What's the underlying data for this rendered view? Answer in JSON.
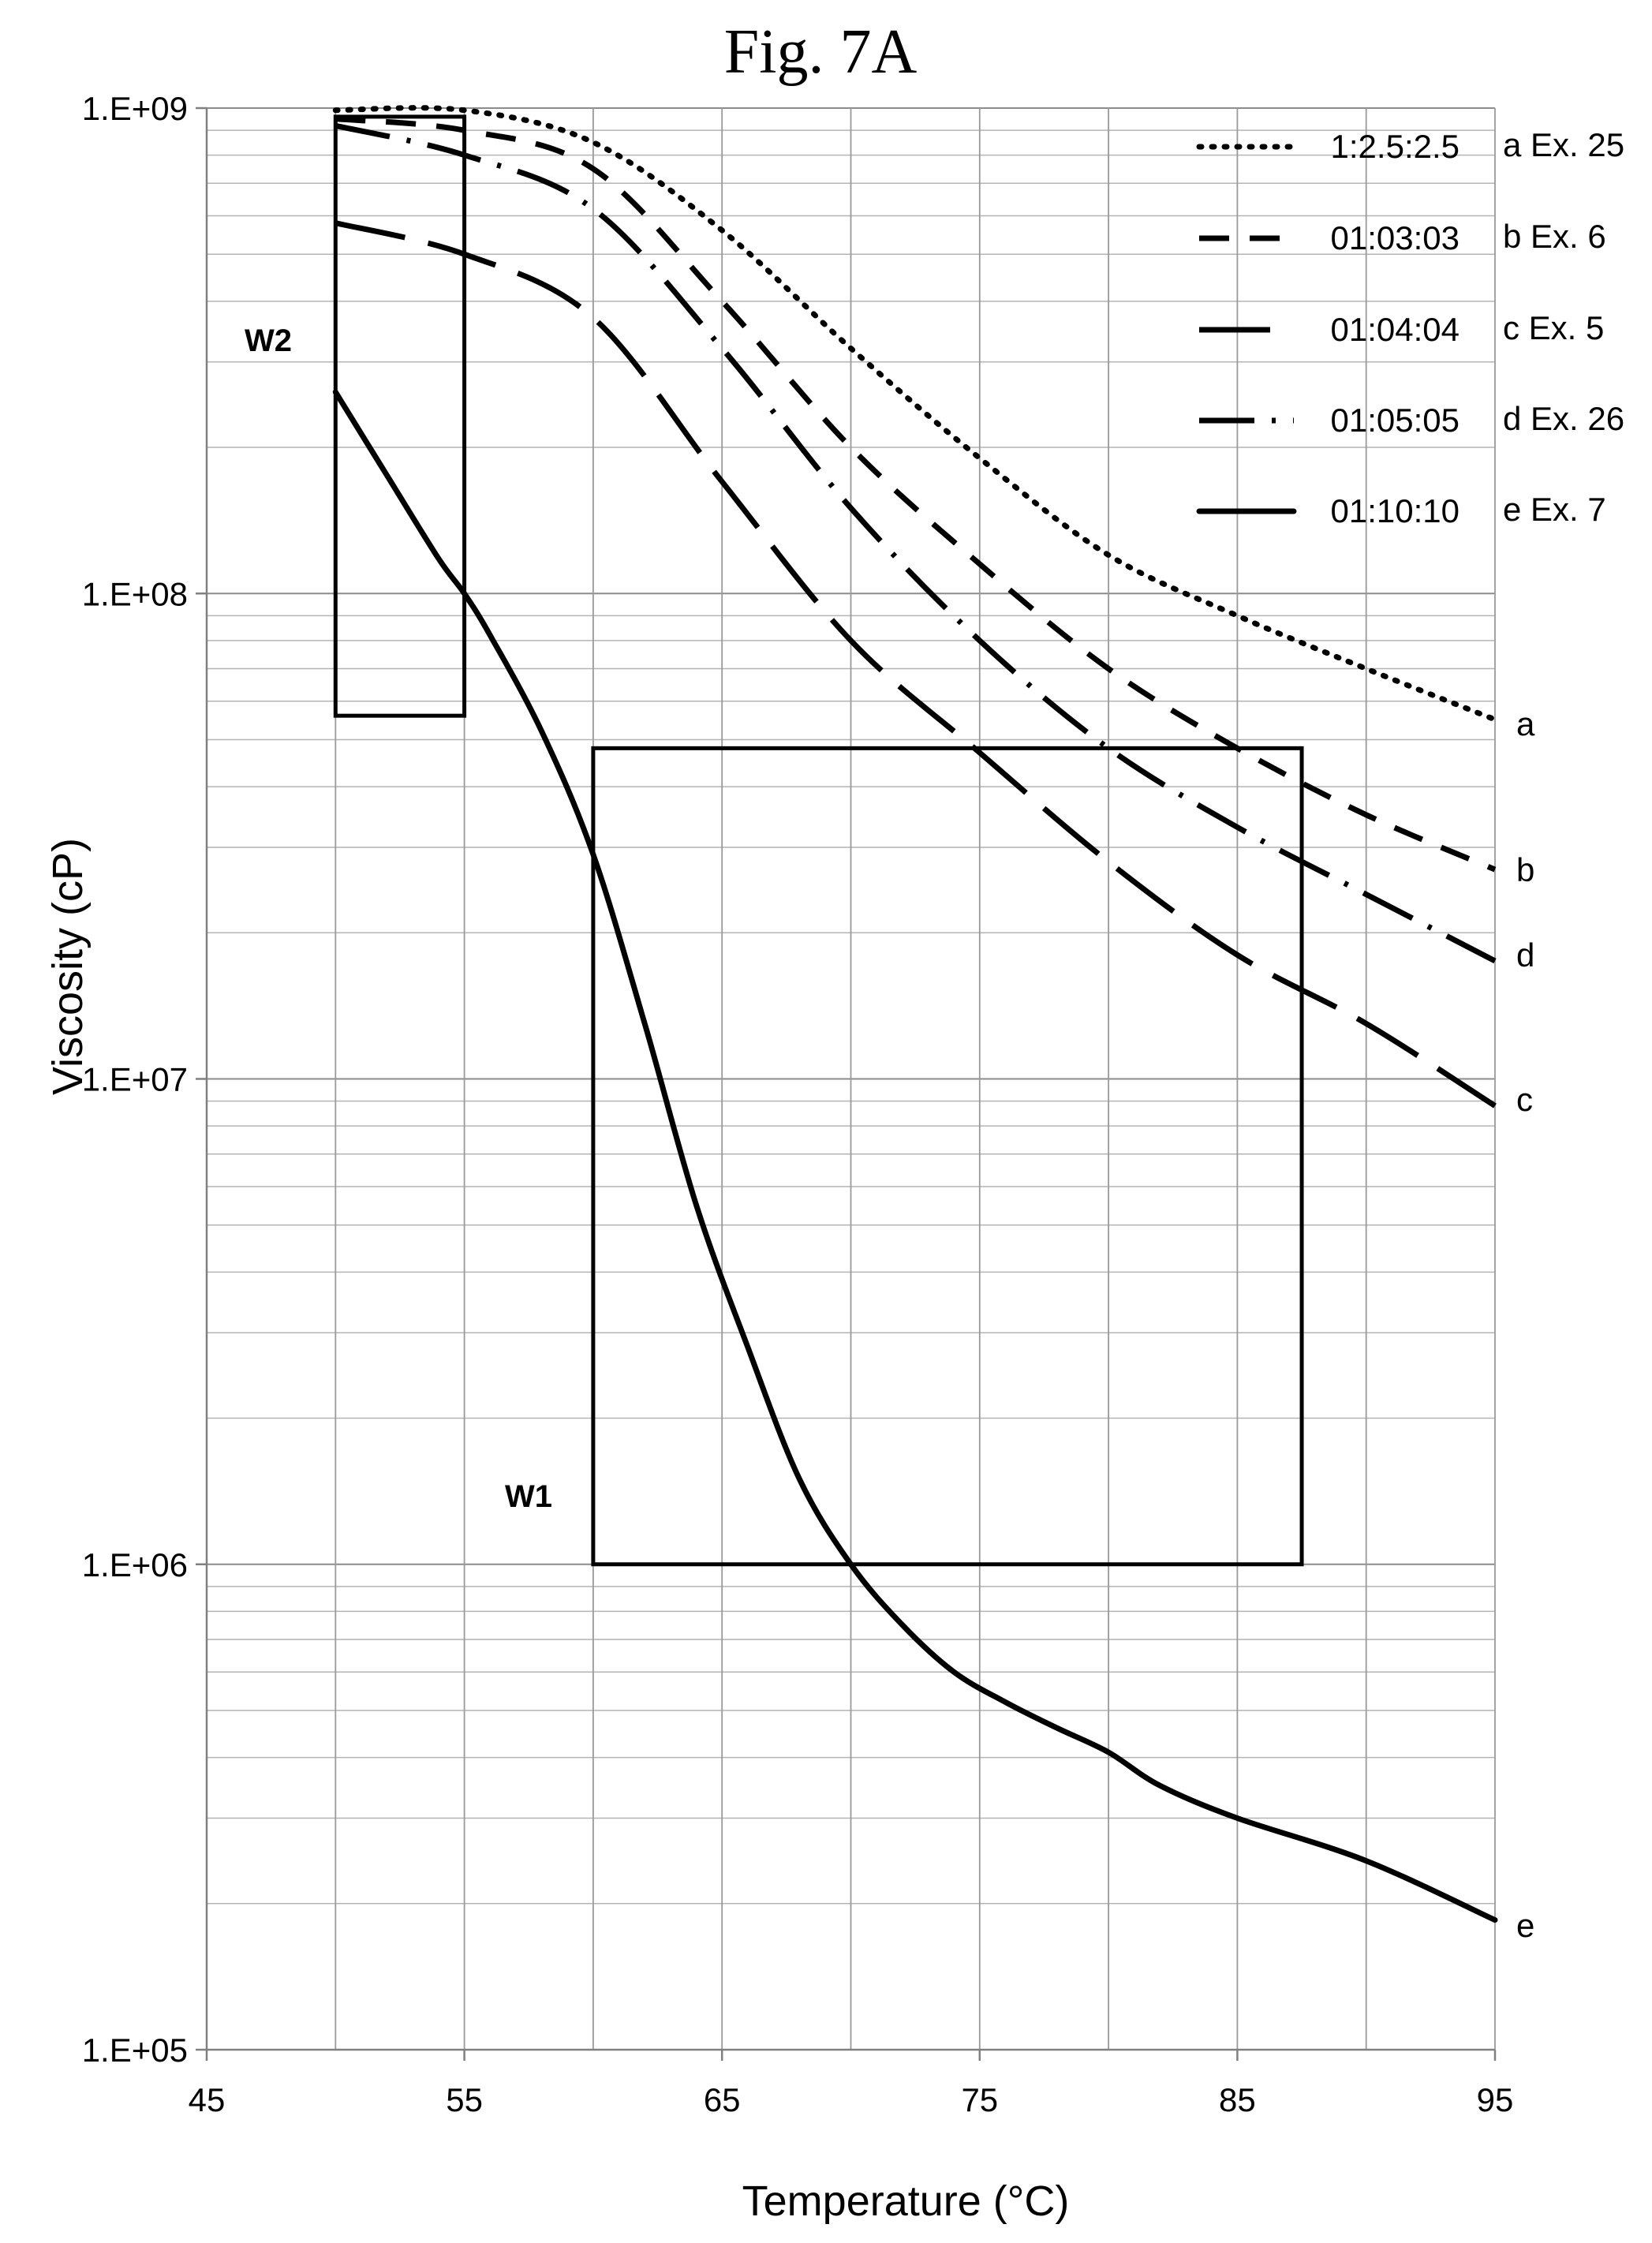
{
  "chart_data": {
    "type": "line",
    "title": "Fig. 7A",
    "xlabel": "Temperature (°C)",
    "ylabel": "Viscosity (cP)",
    "xlim": [
      45,
      95
    ],
    "ylim": [
      100000,
      1000000000
    ],
    "y_scale": "log",
    "x_ticks": [
      45,
      55,
      65,
      75,
      85,
      95
    ],
    "x_tick_labels": [
      "45",
      "55",
      "65",
      "75",
      "85",
      "95"
    ],
    "y_ticks": [
      100000,
      1000000,
      10000000,
      100000000,
      1000000000
    ],
    "y_tick_labels": [
      "1.E+05",
      "1.E+06",
      "1.E+07",
      "1.E+08",
      "1.E+09"
    ],
    "grid": true,
    "legend_position": "top-right",
    "series": [
      {
        "name": "1:2.5:2.5",
        "legend_note": "a Ex. 25",
        "end_label": "a",
        "style": "dotted",
        "x": [
          50,
          55,
          60,
          65,
          70,
          75,
          80,
          85,
          90,
          95
        ],
        "y": [
          990000000,
          990000000,
          850000000,
          560000000,
          320000000,
          190000000,
          120000000,
          90000000,
          70000000,
          55000000
        ]
      },
      {
        "name": "01:03:03",
        "legend_note": "b Ex. 6",
        "end_label": "b",
        "style": "dashed",
        "x": [
          50,
          55,
          60,
          65,
          70,
          75,
          80,
          85,
          90,
          95
        ],
        "y": [
          950000000,
          900000000,
          750000000,
          400000000,
          200000000,
          115000000,
          70000000,
          48000000,
          35000000,
          27000000
        ]
      },
      {
        "name": "01:04:04",
        "legend_note": "c Ex. 5",
        "end_label": "c",
        "style": "long-dash",
        "x": [
          50,
          55,
          60,
          65,
          70,
          75,
          80,
          85,
          90,
          95
        ],
        "y": [
          580000000,
          500000000,
          370000000,
          170000000,
          80000000,
          47000000,
          28000000,
          18000000,
          13000000,
          8800000
        ]
      },
      {
        "name": "01:05:05",
        "legend_note": "d Ex. 26",
        "end_label": "d",
        "style": "dash-dot",
        "x": [
          50,
          55,
          60,
          65,
          70,
          75,
          80,
          85,
          90,
          95
        ],
        "y": [
          920000000,
          800000000,
          620000000,
          320000000,
          150000000,
          80000000,
          48000000,
          33000000,
          24000000,
          17500000
        ]
      },
      {
        "name": "01:10:10",
        "legend_note": "e Ex. 7",
        "end_label": "e",
        "style": "solid",
        "x": [
          50,
          52,
          54,
          55,
          56,
          58,
          60,
          62,
          64,
          66,
          68,
          70,
          72,
          74,
          76,
          78,
          80,
          82,
          85,
          90,
          95
        ],
        "y": [
          260000000,
          175000000,
          118000000,
          100000000,
          82000000,
          52000000,
          29000000,
          13000000,
          5500000,
          2800000,
          1500000,
          1000000,
          750000,
          600000,
          520000,
          460000,
          410000,
          350000,
          300000,
          245000,
          185000
        ]
      }
    ],
    "boxes": [
      {
        "label": "W2",
        "x": [
          50,
          55
        ],
        "y": [
          56000000,
          960000000
        ]
      },
      {
        "label": "W1",
        "x": [
          60,
          87.5
        ],
        "y": [
          1000000,
          48000000
        ]
      }
    ]
  }
}
